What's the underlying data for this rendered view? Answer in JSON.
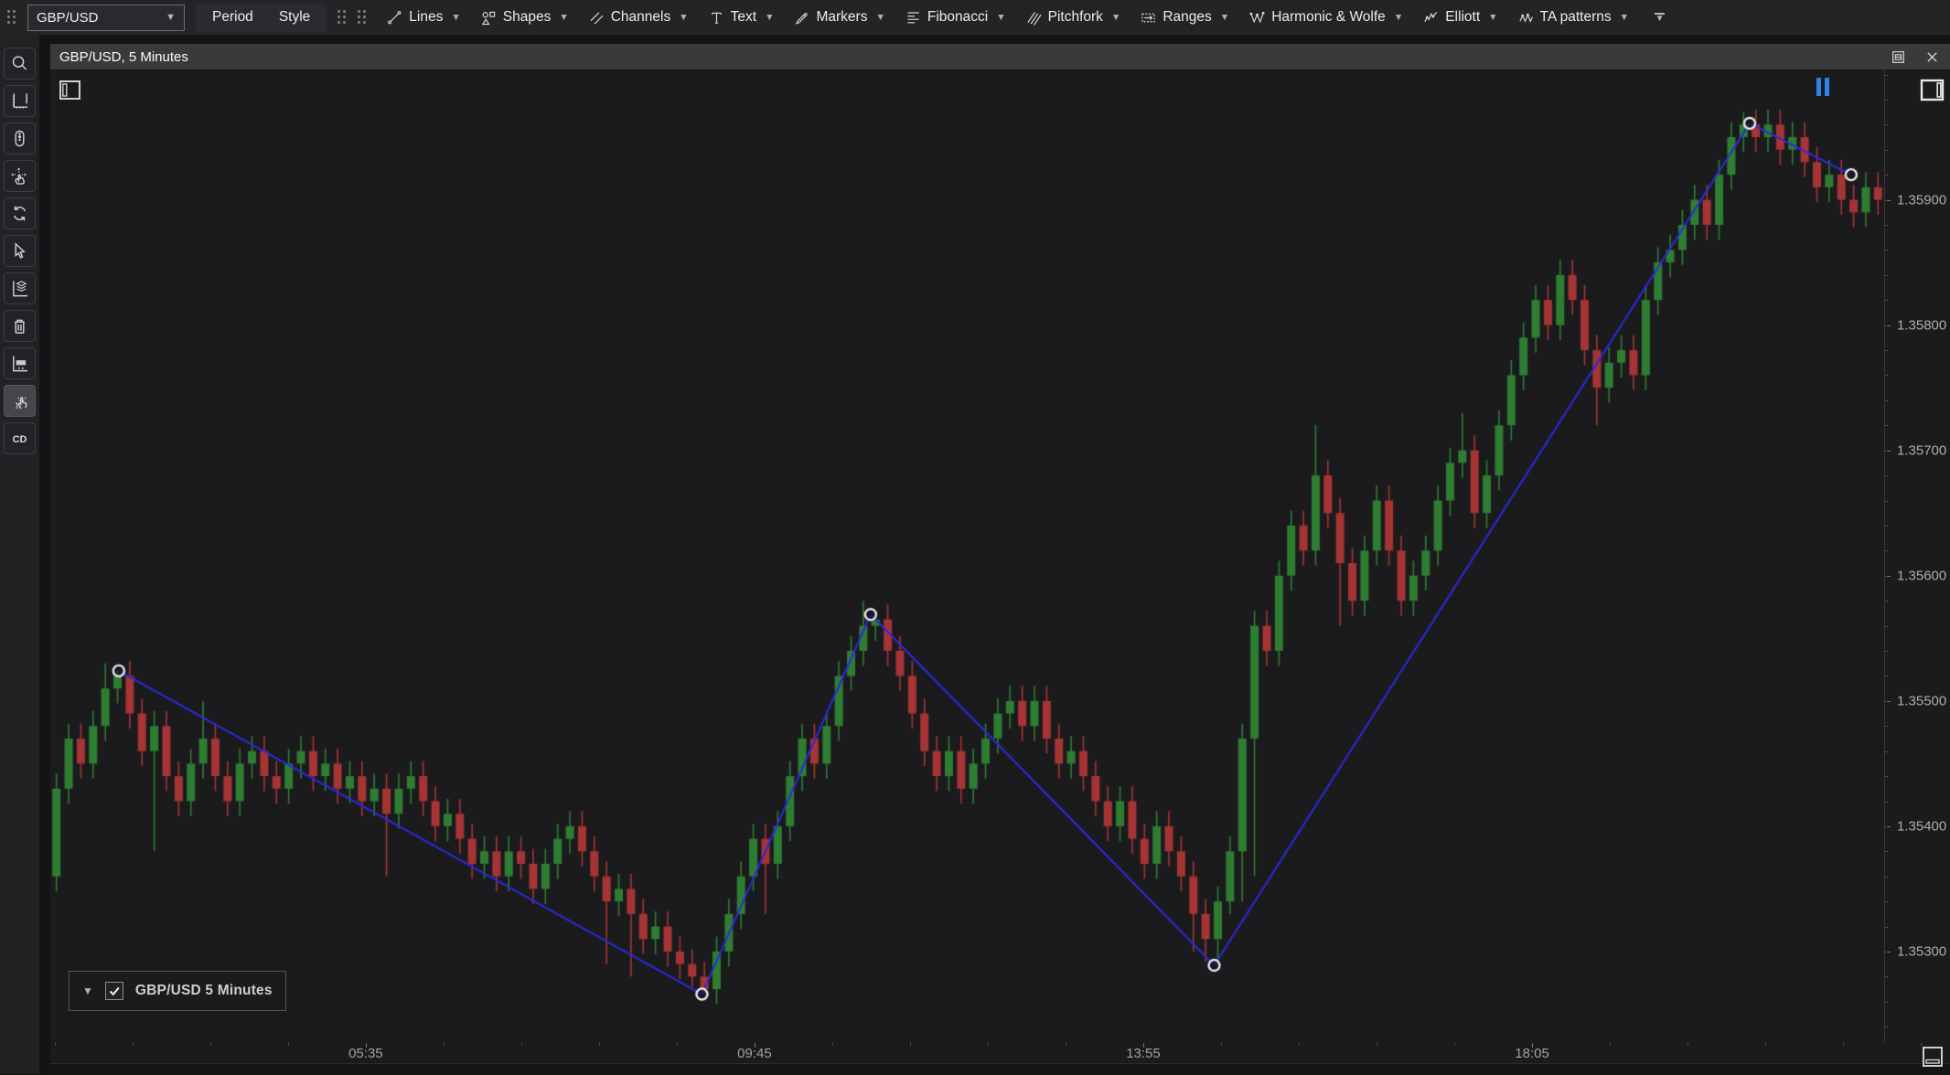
{
  "toolbar": {
    "symbol": {
      "value": "GBP/USD"
    },
    "period_label": "Period",
    "style_label": "Style",
    "tools": [
      {
        "label": "Lines",
        "icon": "trend-line"
      },
      {
        "label": "Shapes",
        "icon": "shapes"
      },
      {
        "label": "Channels",
        "icon": "channels"
      },
      {
        "label": "Text",
        "icon": "text-tool"
      },
      {
        "label": "Markers",
        "icon": "marker-pen"
      },
      {
        "label": "Fibonacci",
        "icon": "fibonacci"
      },
      {
        "label": "Pitchfork",
        "icon": "pitchfork"
      },
      {
        "label": "Ranges",
        "icon": "ranges"
      },
      {
        "label": "Harmonic & Wolfe",
        "icon": "harmonic-wolfe"
      },
      {
        "label": "Elliott",
        "icon": "elliott-waves"
      },
      {
        "label": "TA patterns",
        "icon": "ta-patterns"
      }
    ]
  },
  "sidebar": {
    "items": [
      {
        "name": "zoom-search",
        "icon": "search",
        "active": false
      },
      {
        "name": "axis-range",
        "icon": "axis-frame",
        "active": false
      },
      {
        "name": "mouse-wheel-zoom",
        "icon": "mouse-wheel",
        "active": false
      },
      {
        "name": "pan",
        "icon": "pan-hand",
        "active": false
      },
      {
        "name": "refresh",
        "icon": "refresh",
        "active": false
      },
      {
        "name": "cursor-select",
        "icon": "cursor",
        "active": false
      },
      {
        "name": "series-layers",
        "icon": "layers-axis",
        "active": false
      },
      {
        "name": "delete-annotation",
        "icon": "trash",
        "active": false
      },
      {
        "name": "axis-label",
        "icon": "axis-label",
        "active": false
      },
      {
        "name": "tap-select",
        "icon": "tap-one",
        "active": true
      },
      {
        "name": "custom-drawing",
        "icon": "cd-text",
        "active": false,
        "text": "CD"
      }
    ]
  },
  "chart": {
    "title": "GBP/USD, 5 Minutes",
    "legend": {
      "label": "GBP/USD 5 Minutes",
      "checked": true
    }
  },
  "chart_data": {
    "type": "candlestick",
    "symbol": "GBP/USD",
    "interval": "5 Minutes",
    "ylim": [
      1.35227,
      1.36004
    ],
    "yticks": [
      {
        "price": 1.359,
        "label": "1.35900"
      },
      {
        "price": 1.358,
        "label": "1.35800"
      },
      {
        "price": 1.357,
        "label": "1.35700"
      },
      {
        "price": 1.356,
        "label": "1.35600"
      },
      {
        "price": 1.355,
        "label": "1.35500"
      },
      {
        "price": 1.354,
        "label": "1.35400"
      },
      {
        "price": 1.353,
        "label": "1.35300"
      }
    ],
    "xticks": [
      {
        "i": 25.3,
        "label": "05:35"
      },
      {
        "i": 57.1,
        "label": "09:45"
      },
      {
        "i": 88.9,
        "label": "13:55"
      },
      {
        "i": 120.7,
        "label": "18:05"
      }
    ],
    "open_first": 1.3536,
    "closes": [
      1.3543,
      1.3547,
      1.3545,
      1.3548,
      1.3551,
      1.3552,
      1.3549,
      1.3546,
      1.3548,
      1.3544,
      1.3542,
      1.3545,
      1.3547,
      1.3544,
      1.3542,
      1.3545,
      1.3546,
      1.3544,
      1.3543,
      1.3545,
      1.3546,
      1.3544,
      1.3545,
      1.3543,
      1.3544,
      1.3542,
      1.3543,
      1.3541,
      1.3543,
      1.3544,
      1.3542,
      1.354,
      1.3541,
      1.3539,
      1.3537,
      1.3538,
      1.3536,
      1.3538,
      1.3537,
      1.3535,
      1.3537,
      1.3539,
      1.354,
      1.3538,
      1.3536,
      1.3534,
      1.3535,
      1.3533,
      1.3531,
      1.3532,
      1.353,
      1.3529,
      1.3528,
      1.3527,
      1.353,
      1.3533,
      1.3536,
      1.3539,
      1.3537,
      1.354,
      1.3544,
      1.3547,
      1.3545,
      1.3548,
      1.3552,
      1.3554,
      1.3556,
      1.35565,
      1.3554,
      1.3552,
      1.3549,
      1.3546,
      1.3544,
      1.3546,
      1.3543,
      1.3545,
      1.3547,
      1.3549,
      1.355,
      1.3548,
      1.355,
      1.3547,
      1.3545,
      1.3546,
      1.3544,
      1.3542,
      1.354,
      1.3542,
      1.3539,
      1.3537,
      1.354,
      1.3538,
      1.3536,
      1.3533,
      1.3531,
      1.3534,
      1.3538,
      1.3547,
      1.3556,
      1.3554,
      1.356,
      1.3564,
      1.3562,
      1.3568,
      1.3565,
      1.3561,
      1.3558,
      1.3562,
      1.3566,
      1.3562,
      1.3558,
      1.356,
      1.3562,
      1.3566,
      1.3569,
      1.357,
      1.3565,
      1.3568,
      1.3572,
      1.3576,
      1.3579,
      1.3582,
      1.358,
      1.3584,
      1.3582,
      1.3578,
      1.3575,
      1.3577,
      1.3578,
      1.3576,
      1.3582,
      1.3585,
      1.3586,
      1.3588,
      1.359,
      1.3588,
      1.3592,
      1.3595,
      1.3596,
      1.3595,
      1.3596,
      1.3594,
      1.3595,
      1.3593,
      1.3591,
      1.3592,
      1.359,
      1.3589,
      1.3591,
      1.359
    ],
    "wick_pad": 0.00012,
    "low_overrides": {
      "8": 1.3538,
      "27": 1.3536,
      "45": 1.3529,
      "47": 1.3528,
      "52": 1.35272,
      "53": 1.35266,
      "58": 1.3533,
      "93": 1.353,
      "94": 1.35292,
      "95": 1.35289,
      "96": 1.3533,
      "97": 1.3534,
      "98": 1.3536,
      "105": 1.3556,
      "126": 1.3572
    },
    "high_overrides": {
      "4": 1.3553,
      "5": 1.35525,
      "12": 1.355,
      "66": 1.3558,
      "67": 1.35572,
      "103": 1.3572,
      "115": 1.3573,
      "138": 1.3597
    },
    "colors": {
      "up": "#2e7d32",
      "down": "#a63434",
      "background": "#1b1b1d",
      "zigzag": "#2a2ae0",
      "pause": "#2f81e8"
    },
    "annotations": [
      {
        "type": "zigzag",
        "points": [
          {
            "i": 5.1,
            "price": 1.35524
          },
          {
            "i": 52.8,
            "price": 1.35266
          },
          {
            "i": 66.6,
            "price": 1.35569
          },
          {
            "i": 94.7,
            "price": 1.35289
          },
          {
            "i": 138.5,
            "price": 1.35961
          },
          {
            "i": 146.8,
            "price": 1.3592
          }
        ]
      }
    ],
    "legend_position": "bottom-left",
    "grid": false
  }
}
